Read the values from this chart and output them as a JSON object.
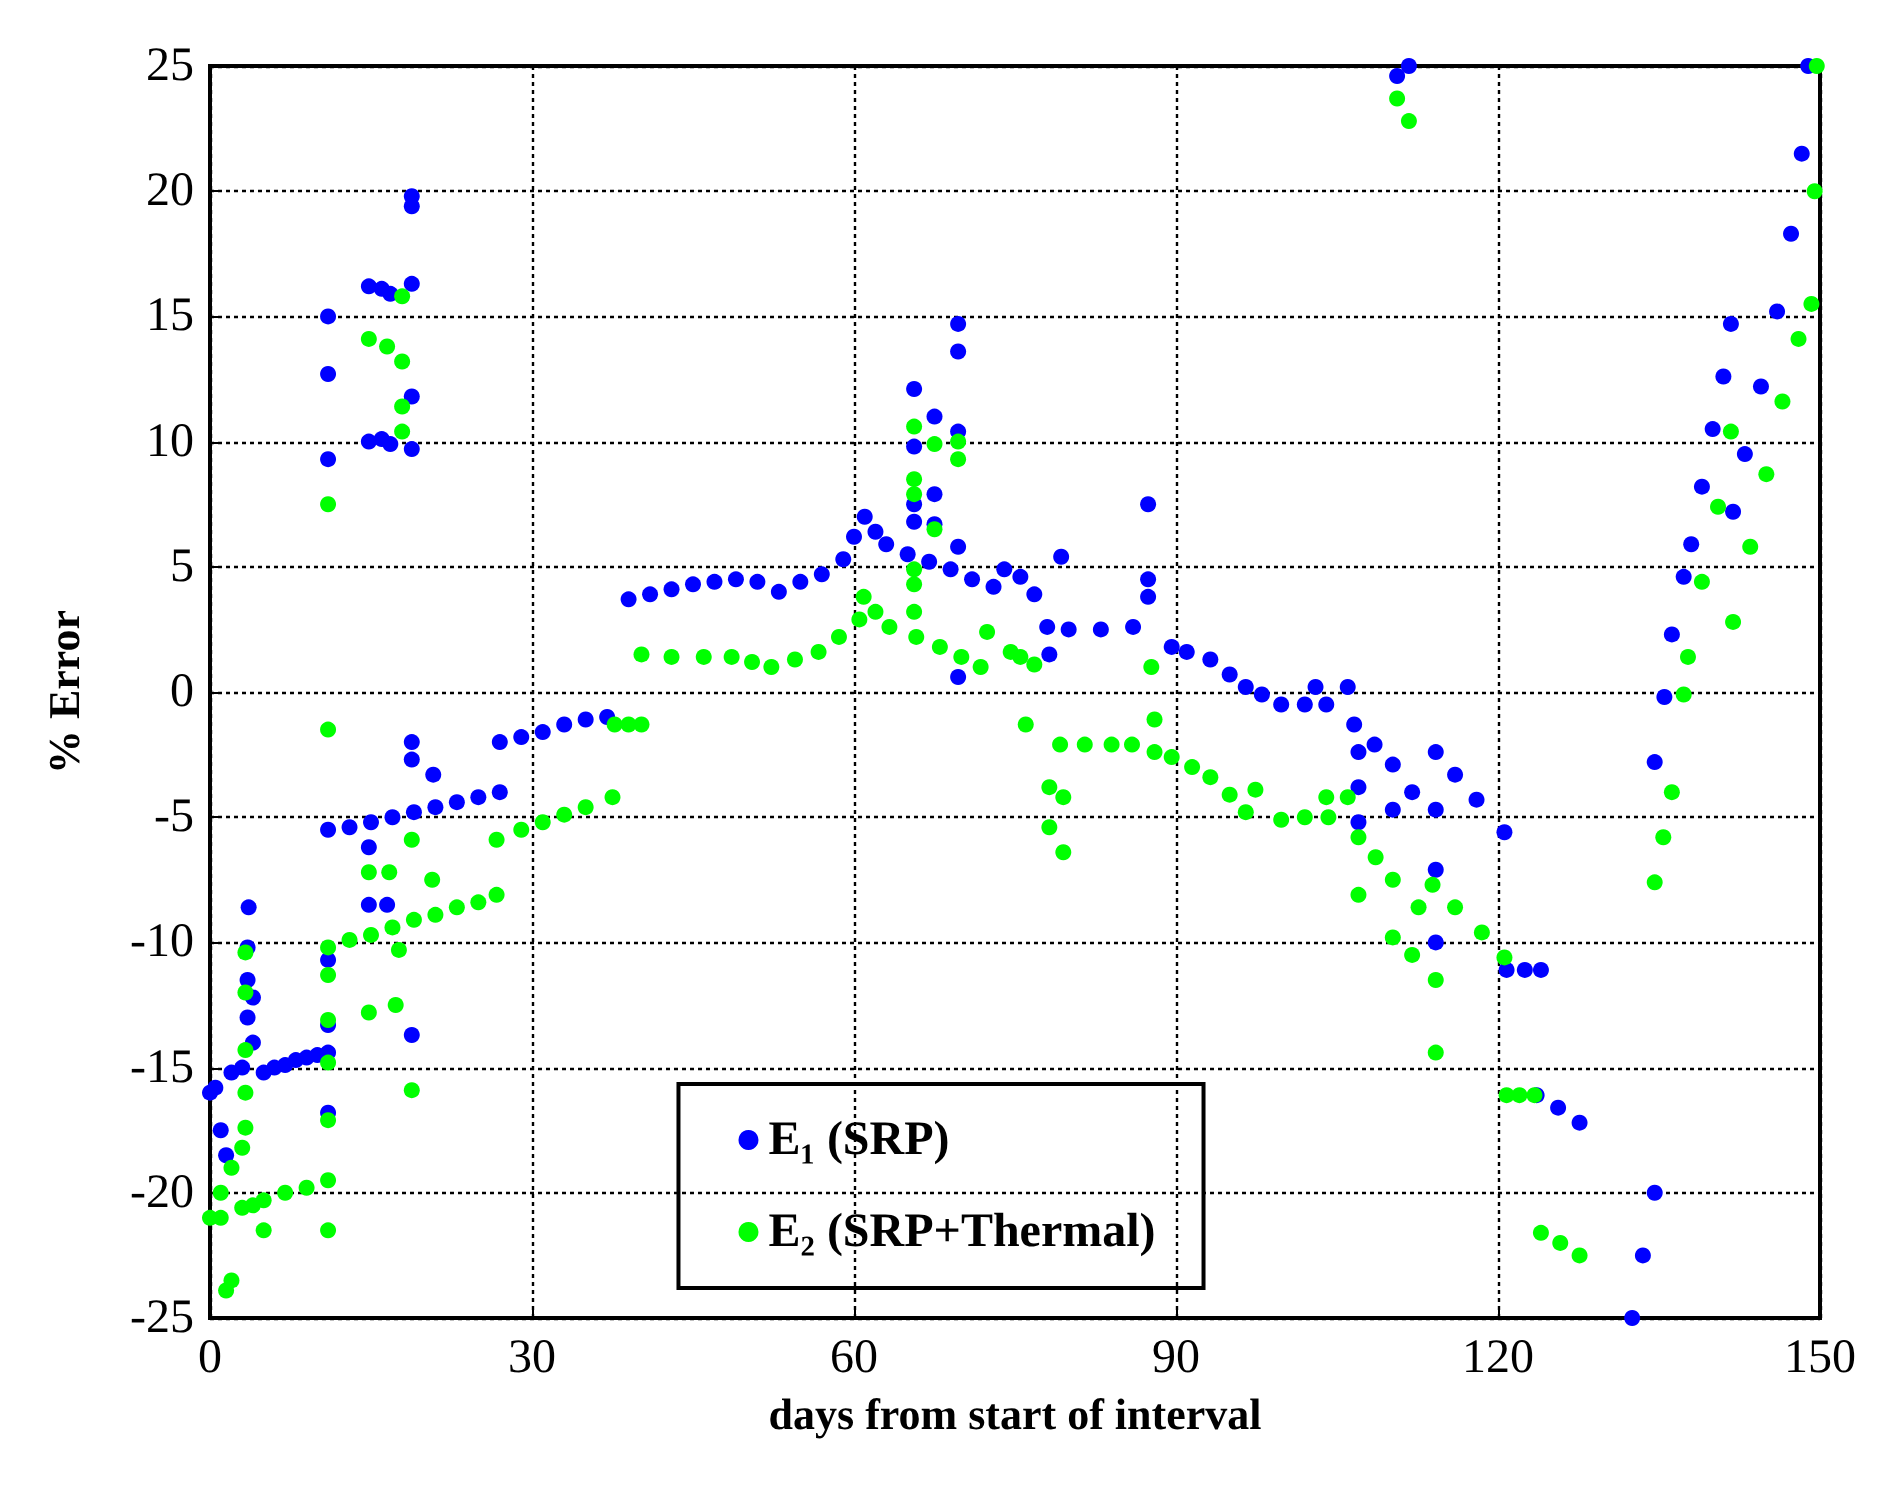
{
  "chart_data": {
    "type": "scatter",
    "xlabel": "days from start of interval",
    "ylabel": "% Error",
    "xlim": [
      0,
      150
    ],
    "xticks": [
      0,
      30,
      60,
      90,
      120,
      150
    ],
    "ylim": [
      -25,
      25
    ],
    "yticks": [
      -25,
      -20,
      -15,
      -10,
      -5,
      0,
      5,
      10,
      15,
      20,
      25
    ],
    "grid": true,
    "legend": "bottom",
    "marker": "circle",
    "series": [
      {
        "name": "E₁ (SRP)",
        "color": "#0000ff",
        "x": [
          0,
          0.5,
          1,
          1.5,
          2,
          3,
          3.5,
          3.5,
          3.5,
          3.6,
          4,
          4,
          5,
          6,
          7,
          8,
          9,
          10,
          11,
          11,
          11,
          11,
          11,
          11,
          11,
          11,
          13,
          15,
          17,
          19,
          21,
          23,
          25,
          27,
          14.8,
          16,
          16.8,
          14.8,
          16,
          16.8,
          18.8,
          18.8,
          18.8,
          18.8,
          18.8,
          18.8,
          18.8,
          18.8,
          20.8,
          14.8,
          16.5,
          14.8,
          27,
          29,
          31,
          33,
          35,
          37,
          39,
          41,
          43,
          45,
          47,
          49,
          51,
          53,
          55,
          57,
          59,
          60,
          61,
          62,
          63,
          65,
          67,
          69,
          71,
          73,
          65.6,
          65.6,
          65.6,
          65.6,
          67.5,
          67.5,
          67.5,
          69.7,
          69.7,
          69.7,
          69.7,
          69.7,
          74,
          75.5,
          76.8,
          79.3,
          78.2,
          78,
          80,
          83,
          86,
          87.4,
          87.4,
          87.4,
          89.6,
          91,
          93.2,
          95,
          96.5,
          98,
          99.8,
          102,
          104,
          103,
          106,
          106.6,
          108.5,
          110.2,
          107,
          107,
          107,
          110.2,
          112,
          114.2,
          114.2,
          116,
          118,
          120.6,
          114.2,
          114.2,
          120.8,
          122.5,
          124,
          123.6,
          125.6,
          127.6,
          132.5,
          133.5,
          134.6,
          134.6,
          135.5,
          136.2,
          137.3,
          138,
          139,
          140,
          141,
          141.7,
          141.9,
          143,
          144.5,
          146,
          147.3,
          148.3,
          148.9,
          110.6,
          111.7
        ],
        "values": [
          -16,
          -15.8,
          -17.5,
          -18.5,
          -15.2,
          -15,
          -13,
          -11.5,
          -10.2,
          -8.6,
          -12.2,
          -14,
          -15.2,
          -15,
          -14.9,
          -14.7,
          -14.6,
          -14.5,
          -14.4,
          15,
          12.7,
          9.3,
          -10.7,
          -13.3,
          -16.8,
          -5.5,
          -5.4,
          -5.2,
          -5,
          -4.8,
          -4.6,
          -4.4,
          -4.2,
          -4,
          16.2,
          16.1,
          15.9,
          10,
          10.1,
          9.9,
          19.8,
          19.4,
          16.3,
          11.8,
          9.7,
          -2,
          -2.7,
          -13.7,
          -3.3,
          -8.5,
          -8.5,
          -6.2,
          -2,
          -1.8,
          -1.6,
          -1.3,
          -1.1,
          -1,
          3.7,
          3.9,
          4.1,
          4.3,
          4.4,
          4.5,
          4.4,
          4,
          4.4,
          4.7,
          5.3,
          6.2,
          7,
          6.4,
          5.9,
          5.5,
          5.2,
          4.9,
          4.5,
          4.2,
          12.1,
          9.8,
          7.5,
          6.8,
          11,
          7.9,
          6.7,
          14.7,
          13.6,
          10.4,
          5.8,
          0.6,
          4.9,
          4.6,
          3.9,
          5.4,
          1.5,
          2.6,
          2.5,
          2.5,
          2.6,
          7.5,
          4.5,
          3.8,
          1.8,
          1.6,
          1.3,
          0.7,
          0.2,
          -0.1,
          -0.5,
          -0.5,
          -0.5,
          0.2,
          0.2,
          -1.3,
          -2.1,
          -2.9,
          -2.4,
          -3.8,
          -5.2,
          -4.7,
          -4,
          -4.7,
          -2.4,
          -3.3,
          -4.3,
          -5.6,
          -7.1,
          -10,
          -11.1,
          -11.1,
          -11.1,
          -16.1,
          -16.6,
          -17.2,
          -25,
          -22.5,
          -20,
          -2.8,
          -0.2,
          2.3,
          4.6,
          5.9,
          8.2,
          10.5,
          12.6,
          14.7,
          7.2,
          9.5,
          12.2,
          15.2,
          18.3,
          21.5,
          25,
          24.6,
          25
        ]
      },
      {
        "name": "E₂ (SRP+Thermal)",
        "color": "#00ff00",
        "x": [
          0,
          1,
          3,
          5,
          7,
          9,
          11,
          1,
          1.5,
          2,
          2,
          3,
          3.3,
          3.3,
          3.3,
          3.3,
          3.3,
          4,
          5,
          11,
          11,
          11,
          11,
          11,
          11,
          11,
          11,
          13,
          15,
          17,
          19,
          21,
          23,
          25,
          26.7,
          14.8,
          16.5,
          17.9,
          17.9,
          17.9,
          17.9,
          14.8,
          16.7,
          14.8,
          17.3,
          18.8,
          18.8,
          20.7,
          17.6,
          26.7,
          29,
          31,
          33,
          35,
          37.5,
          37.7,
          39,
          40.2,
          40.2,
          43,
          46,
          48.6,
          50.5,
          52.3,
          54.5,
          56.7,
          58.6,
          60.5,
          60.9,
          62,
          63.3,
          65.8,
          68,
          70,
          71.8,
          65.6,
          65.6,
          65.6,
          65.6,
          65.6,
          65.6,
          67.5,
          67.5,
          69.7,
          69.7,
          72.4,
          74.6,
          75.5,
          76.8,
          87.7,
          76,
          79.2,
          81.5,
          84,
          85.9,
          88,
          88,
          89.6,
          91.5,
          93.2,
          95,
          96.5,
          97.4,
          99.8,
          102,
          104.2,
          104,
          106,
          78.2,
          79.5,
          78.2,
          79.5,
          107,
          108.6,
          110.2,
          107,
          110.2,
          112,
          112.6,
          113.9,
          116,
          118.5,
          120.6,
          114.2,
          114.2,
          120.8,
          122,
          123.4,
          124,
          125.8,
          127.6,
          134.6,
          135.4,
          136.2,
          137.3,
          137.7,
          139,
          140.5,
          141.7,
          141.9,
          143.5,
          145,
          146.5,
          148,
          149.2,
          149.5,
          149.7,
          110.6,
          111.7
        ],
        "values": [
          -21,
          -21,
          -20.6,
          -20.3,
          -20,
          -19.8,
          -19.5,
          -20,
          -23.9,
          -23.5,
          -19,
          -18.2,
          -17.4,
          -16,
          -14.3,
          -12,
          -10.4,
          -20.5,
          -21.5,
          7.5,
          -1.5,
          -11.3,
          -13.1,
          -14.8,
          -17.1,
          -21.5,
          -10.2,
          -9.9,
          -9.7,
          -9.4,
          -9.1,
          -8.9,
          -8.6,
          -8.4,
          -8.1,
          14.1,
          13.8,
          15.8,
          13.2,
          11.4,
          10.4,
          -7.2,
          -7.2,
          -12.8,
          -12.5,
          -5.9,
          -15.9,
          -7.5,
          -10.3,
          -5.9,
          -5.5,
          -5.2,
          -4.9,
          -4.6,
          -4.2,
          -1.3,
          -1.3,
          -1.3,
          1.5,
          1.4,
          1.4,
          1.4,
          1.2,
          1,
          1.3,
          1.6,
          2.2,
          2.9,
          3.8,
          3.2,
          2.6,
          2.2,
          1.8,
          1.4,
          1,
          10.6,
          8.5,
          7.9,
          4.9,
          4.3,
          3.2,
          9.9,
          6.5,
          10,
          9.3,
          2.4,
          1.6,
          1.4,
          1.1,
          1,
          -1.3,
          -2.1,
          -2.1,
          -2.1,
          -2.1,
          -1.1,
          -2.4,
          -2.6,
          -3,
          -3.4,
          -4.1,
          -4.8,
          -3.9,
          -5.1,
          -5,
          -5,
          -4.2,
          -4.2,
          -3.8,
          -4.2,
          -5.4,
          -6.4,
          -5.8,
          -6.6,
          -7.5,
          -8.1,
          -9.8,
          -10.5,
          -8.6,
          -7.7,
          -8.6,
          -9.6,
          -10.6,
          -11.5,
          -14.4,
          -16.1,
          -16.1,
          -16.1,
          -21.6,
          -22,
          -22.5,
          -7.6,
          -5.8,
          -4,
          -0.1,
          1.4,
          4.4,
          7.4,
          10.4,
          2.8,
          5.8,
          8.7,
          11.6,
          14.1,
          15.5,
          20,
          25,
          23.7,
          22.8
        ]
      }
    ]
  }
}
